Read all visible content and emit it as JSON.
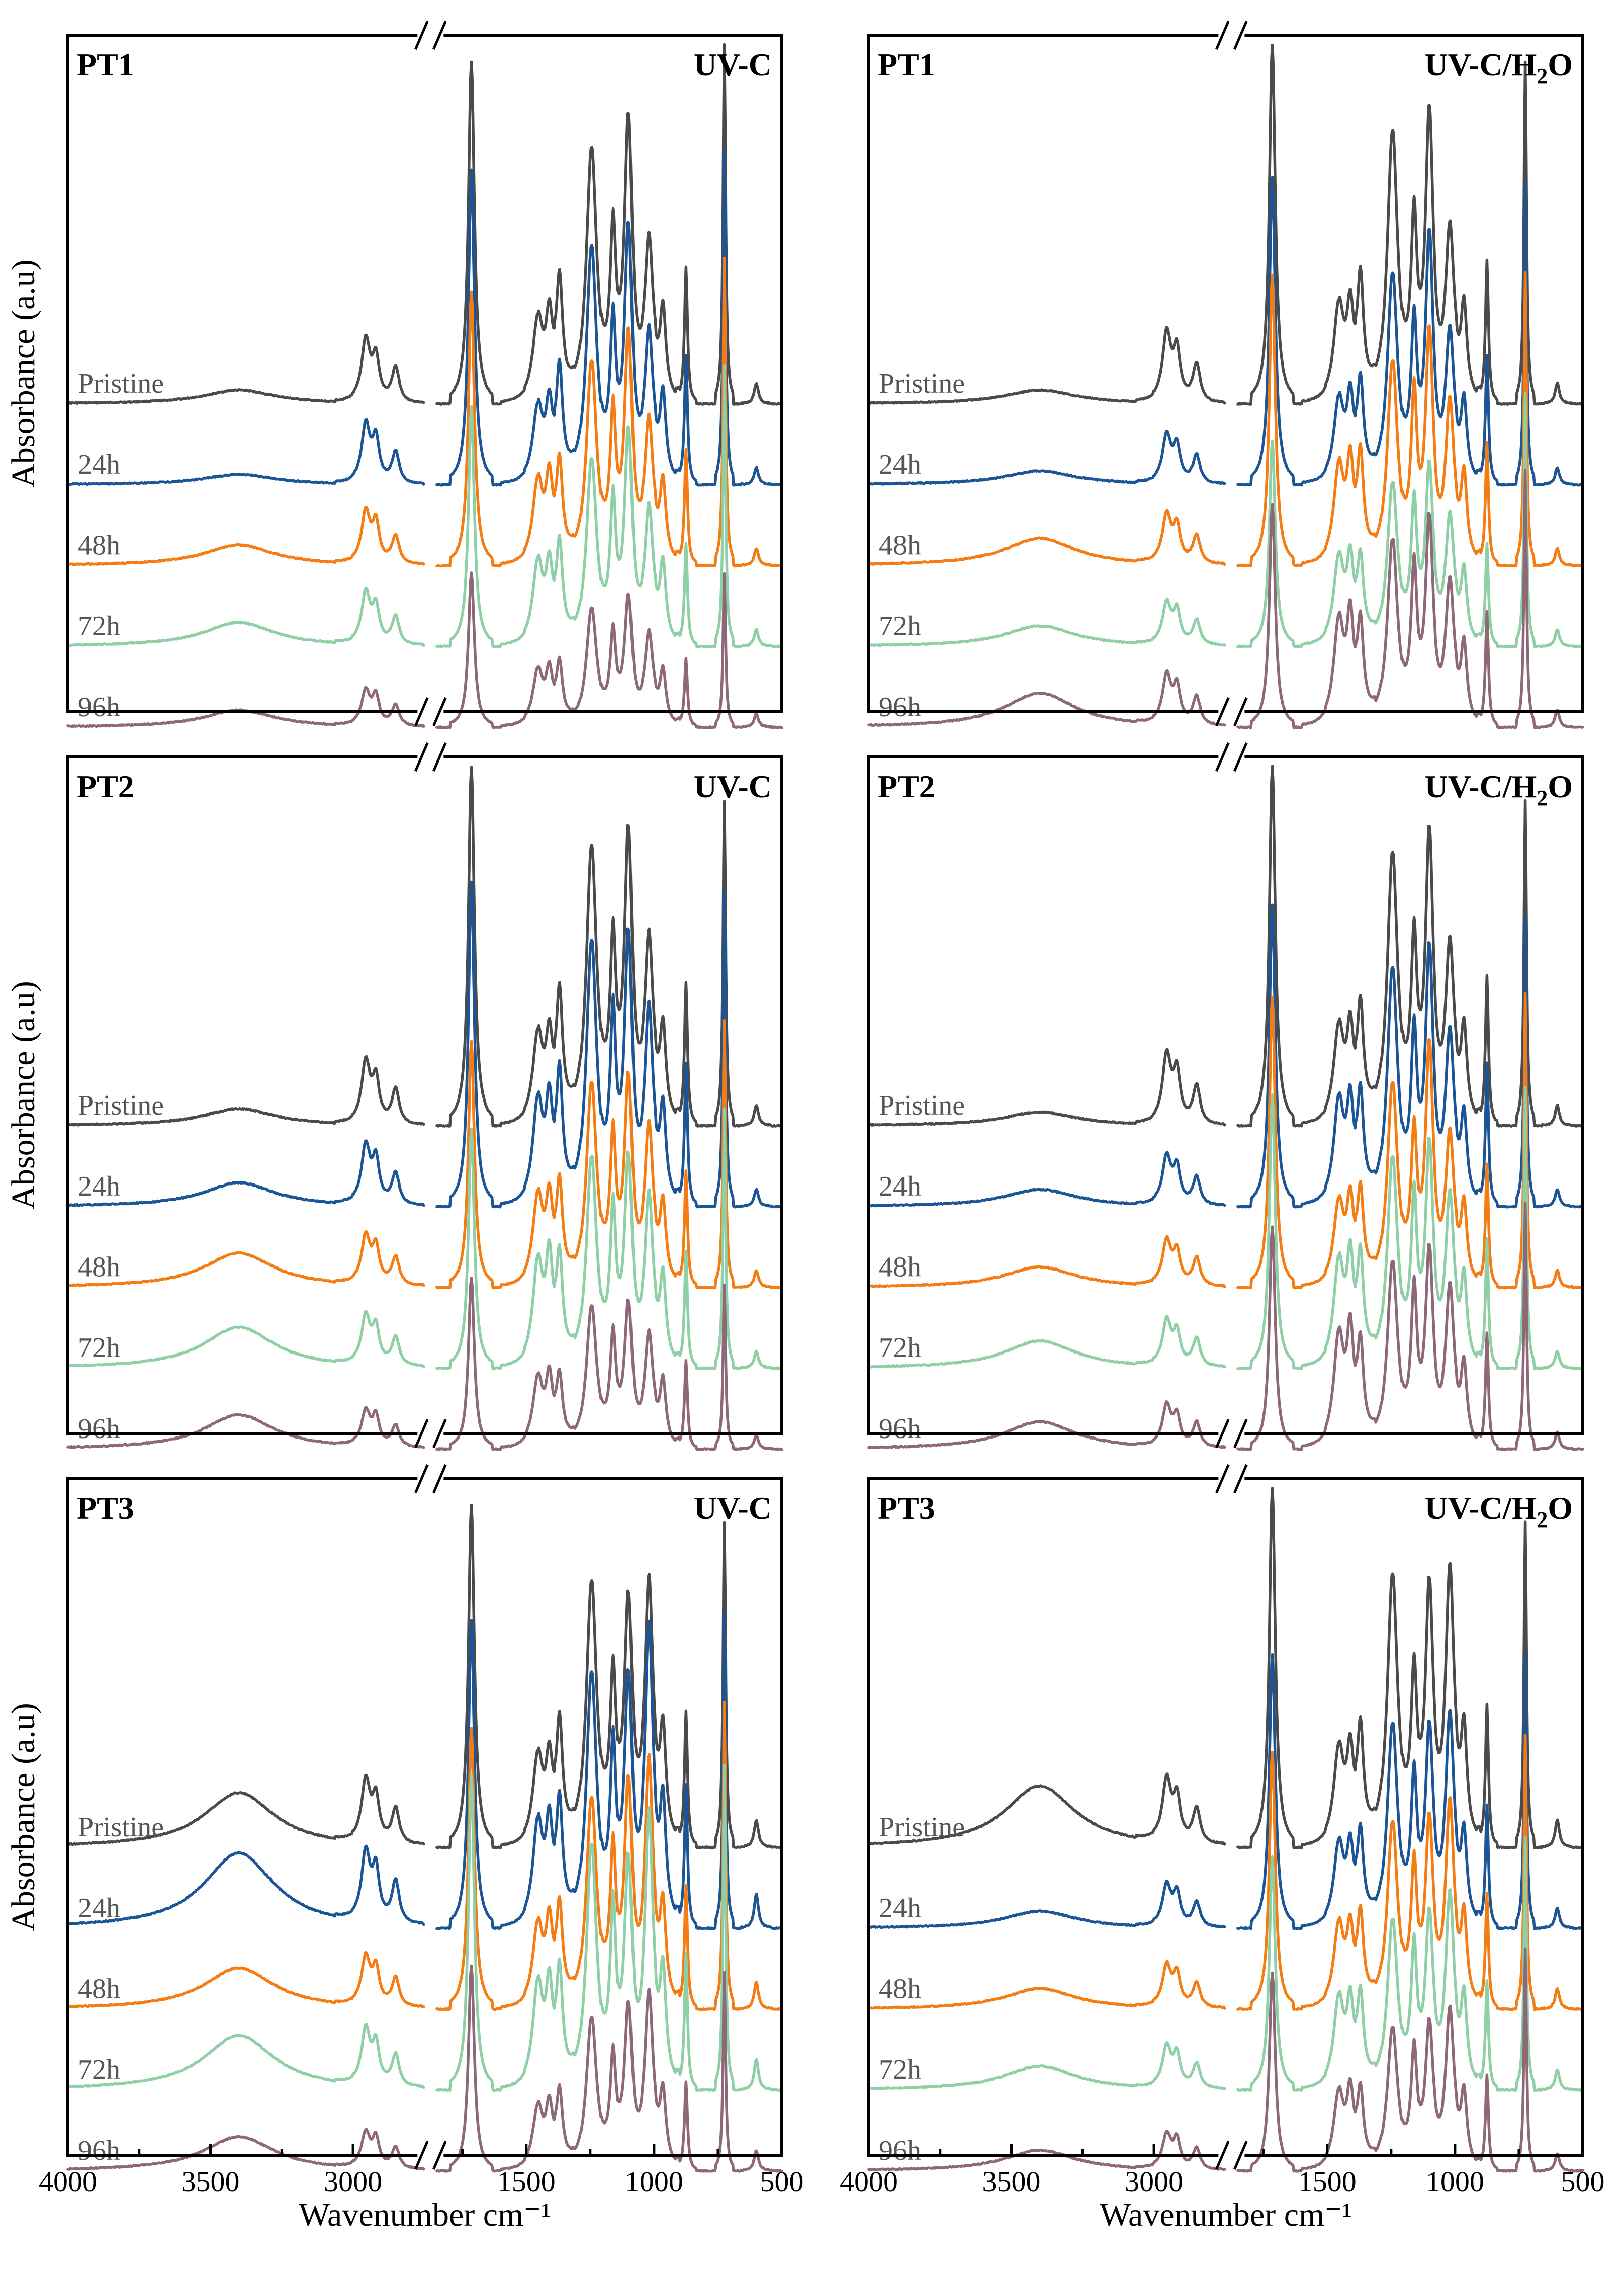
{
  "chart_data": {
    "type": "line",
    "figure_title": "",
    "xlabel": "Wavenumber cm⁻¹",
    "ylabel": "Absorbance (a.u)",
    "x_range": [
      4000,
      500
    ],
    "x_break": [
      2750,
      1850
    ],
    "x_ticks": [
      4000,
      3500,
      3000,
      1500,
      1000,
      500
    ],
    "x_tick_labels": [
      "4000",
      "3500",
      "3000",
      "1500",
      "1000",
      "500"
    ],
    "series_names": [
      "Pristine",
      "24h",
      "48h",
      "72h",
      "96h"
    ],
    "series_colors": [
      "#4a4a4a",
      "#1c5596",
      "#f57c12",
      "#8fcfa6",
      "#8e6878"
    ],
    "peak_positions_cm1": [
      3400,
      2955,
      2920,
      2850,
      1715,
      1455,
      1410,
      1370,
      1245,
      1160,
      1100,
      1020,
      965,
      875,
      725,
      600
    ],
    "panels": [
      {
        "id": "PT1",
        "condition_label": "UV-C",
        "condition_text": "UV-C",
        "condition_sub": "",
        "condition_tail": "",
        "panel_col": "left",
        "series": [
          {
            "name": "Pristine",
            "peaks": [
              0.04,
              0.18,
              0.12,
              0.1,
              1.0,
              0.24,
              0.22,
              0.32,
              0.75,
              0.45,
              0.8,
              0.45,
              0.25,
              0.4,
              1.05,
              0.06
            ]
          },
          {
            "name": "24h",
            "peaks": [
              0.03,
              0.17,
              0.12,
              0.09,
              0.92,
              0.22,
              0.2,
              0.3,
              0.7,
              0.42,
              0.72,
              0.42,
              0.24,
              0.38,
              0.98,
              0.05
            ]
          },
          {
            "name": "48h",
            "peaks": [
              0.06,
              0.15,
              0.11,
              0.08,
              0.8,
              0.24,
              0.22,
              0.26,
              0.6,
              0.4,
              0.65,
              0.4,
              0.22,
              0.34,
              0.9,
              0.05
            ]
          },
          {
            "name": "72h",
            "peaks": [
              0.07,
              0.15,
              0.1,
              0.08,
              0.7,
              0.24,
              0.2,
              0.26,
              0.55,
              0.38,
              0.6,
              0.38,
              0.22,
              0.3,
              0.82,
              0.05
            ]
          },
          {
            "name": "96h",
            "peaks": [
              0.05,
              0.1,
              0.08,
              0.06,
              0.45,
              0.16,
              0.14,
              0.16,
              0.35,
              0.25,
              0.36,
              0.26,
              0.15,
              0.2,
              0.45,
              0.04
            ]
          }
        ]
      },
      {
        "id": "PT1",
        "condition_label": "UV-C/H2O",
        "condition_text": "UV-C/H",
        "condition_sub": "2",
        "condition_tail": "O",
        "panel_col": "right",
        "series": [
          {
            "name": "Pristine",
            "peaks": [
              0.04,
              0.2,
              0.14,
              0.11,
              1.05,
              0.28,
              0.24,
              0.32,
              0.8,
              0.48,
              0.82,
              0.48,
              0.26,
              0.42,
              1.0,
              0.06
            ]
          },
          {
            "name": "24h",
            "peaks": [
              0.04,
              0.14,
              0.1,
              0.08,
              0.9,
              0.24,
              0.22,
              0.26,
              0.62,
              0.42,
              0.7,
              0.42,
              0.22,
              0.38,
              0.88,
              0.05
            ]
          },
          {
            "name": "48h",
            "peaks": [
              0.08,
              0.14,
              0.1,
              0.08,
              0.85,
              0.28,
              0.26,
              0.28,
              0.6,
              0.45,
              0.65,
              0.45,
              0.24,
              0.36,
              0.86,
              0.05
            ]
          },
          {
            "name": "72h",
            "peaks": [
              0.06,
              0.12,
              0.09,
              0.07,
              0.6,
              0.25,
              0.22,
              0.22,
              0.48,
              0.38,
              0.5,
              0.36,
              0.2,
              0.3,
              0.74,
              0.05
            ]
          },
          {
            "name": "96h",
            "peaks": [
              0.1,
              0.14,
              0.1,
              0.08,
              0.65,
              0.3,
              0.28,
              0.26,
              0.55,
              0.42,
              0.58,
              0.4,
              0.22,
              0.34,
              0.75,
              0.05
            ]
          }
        ]
      },
      {
        "id": "PT2",
        "condition_label": "UV-C",
        "condition_text": "UV-C",
        "condition_sub": "",
        "condition_tail": "",
        "panel_col": "left",
        "series": [
          {
            "name": "Pristine",
            "peaks": [
              0.05,
              0.18,
              0.12,
              0.1,
              1.05,
              0.26,
              0.22,
              0.34,
              0.82,
              0.48,
              0.82,
              0.52,
              0.26,
              0.42,
              0.95,
              0.06
            ]
          },
          {
            "name": "24h",
            "peaks": [
              0.07,
              0.17,
              0.12,
              0.09,
              0.95,
              0.3,
              0.26,
              0.34,
              0.78,
              0.5,
              0.75,
              0.55,
              0.26,
              0.42,
              0.92,
              0.05
            ]
          },
          {
            "name": "48h",
            "peaks": [
              0.1,
              0.14,
              0.1,
              0.08,
              0.72,
              0.26,
              0.22,
              0.26,
              0.6,
              0.4,
              0.58,
              0.45,
              0.22,
              0.34,
              0.78,
              0.05
            ]
          },
          {
            "name": "72h",
            "peaks": [
              0.12,
              0.14,
              0.1,
              0.08,
              0.7,
              0.3,
              0.28,
              0.28,
              0.62,
              0.42,
              0.58,
              0.48,
              0.24,
              0.34,
              0.76,
              0.05
            ]
          },
          {
            "name": "96h",
            "peaks": [
              0.1,
              0.1,
              0.08,
              0.06,
              0.5,
              0.2,
              0.18,
              0.18,
              0.42,
              0.3,
              0.4,
              0.32,
              0.18,
              0.26,
              0.48,
              0.04
            ]
          }
        ]
      },
      {
        "id": "PT2",
        "condition_label": "UV-C/H2O",
        "condition_text": "UV-C/H",
        "condition_sub": "2",
        "condition_tail": "O",
        "panel_col": "right",
        "series": [
          {
            "name": "Pristine",
            "peaks": [
              0.04,
              0.2,
              0.14,
              0.11,
              1.05,
              0.28,
              0.24,
              0.3,
              0.8,
              0.48,
              0.82,
              0.5,
              0.26,
              0.44,
              0.95,
              0.06
            ]
          },
          {
            "name": "24h",
            "peaks": [
              0.05,
              0.14,
              0.1,
              0.08,
              0.88,
              0.3,
              0.26,
              0.28,
              0.7,
              0.45,
              0.72,
              0.48,
              0.24,
              0.42,
              0.85,
              0.05
            ]
          },
          {
            "name": "48h",
            "peaks": [
              0.06,
              0.13,
              0.09,
              0.08,
              0.85,
              0.24,
              0.22,
              0.24,
              0.6,
              0.4,
              0.68,
              0.42,
              0.22,
              0.36,
              0.86,
              0.05
            ]
          },
          {
            "name": "72h",
            "peaks": [
              0.08,
              0.13,
              0.09,
              0.08,
              0.8,
              0.3,
              0.28,
              0.28,
              0.62,
              0.45,
              0.62,
              0.48,
              0.24,
              0.38,
              0.82,
              0.05
            ]
          },
          {
            "name": "96h",
            "peaks": [
              0.08,
              0.12,
              0.08,
              0.07,
              0.65,
              0.32,
              0.3,
              0.26,
              0.55,
              0.42,
              0.55,
              0.45,
              0.22,
              0.34,
              0.72,
              0.05
            ]
          }
        ]
      },
      {
        "id": "PT3",
        "condition_label": "UV-C",
        "condition_text": "UV-C",
        "condition_sub": "",
        "condition_tail": "",
        "panel_col": "left",
        "series": [
          {
            "name": "Pristine",
            "peaks": [
              0.16,
              0.18,
              0.12,
              0.1,
              1.0,
              0.26,
              0.22,
              0.32,
              0.78,
              0.45,
              0.68,
              0.75,
              0.3,
              0.4,
              0.95,
              0.08
            ]
          },
          {
            "name": "24h",
            "peaks": [
              0.22,
              0.2,
              0.14,
              0.12,
              0.9,
              0.3,
              0.26,
              0.32,
              0.75,
              0.48,
              0.68,
              0.85,
              0.32,
              0.42,
              0.92,
              0.1
            ]
          },
          {
            "name": "48h",
            "peaks": [
              0.12,
              0.14,
              0.1,
              0.08,
              0.82,
              0.24,
              0.22,
              0.26,
              0.62,
              0.42,
              0.62,
              0.7,
              0.26,
              0.36,
              0.9,
              0.08
            ]
          },
          {
            "name": "72h",
            "peaks": [
              0.16,
              0.16,
              0.11,
              0.09,
              0.92,
              0.3,
              0.26,
              0.3,
              0.72,
              0.48,
              0.62,
              0.78,
              0.3,
              0.4,
              0.95,
              0.09
            ]
          },
          {
            "name": "96h",
            "peaks": [
              0.1,
              0.1,
              0.08,
              0.06,
              0.6,
              0.18,
              0.16,
              0.2,
              0.45,
              0.3,
              0.45,
              0.5,
              0.2,
              0.26,
              0.58,
              0.06
            ]
          }
        ]
      },
      {
        "id": "PT3",
        "condition_label": "UV-C/H2O",
        "condition_text": "UV-C/H",
        "condition_sub": "2",
        "condition_tail": "O",
        "panel_col": "right",
        "series": [
          {
            "name": "Pristine",
            "peaks": [
              0.18,
              0.18,
              0.12,
              0.1,
              1.05,
              0.28,
              0.24,
              0.3,
              0.8,
              0.45,
              0.72,
              0.78,
              0.3,
              0.42,
              0.95,
              0.08
            ]
          },
          {
            "name": "24h",
            "peaks": [
              0.05,
              0.12,
              0.09,
              0.07,
              0.8,
              0.24,
              0.2,
              0.24,
              0.6,
              0.4,
              0.55,
              0.6,
              0.24,
              0.36,
              0.8,
              0.06
            ]
          },
          {
            "name": "48h",
            "peaks": [
              0.06,
              0.12,
              0.09,
              0.07,
              0.75,
              0.24,
              0.2,
              0.24,
              0.55,
              0.38,
              0.52,
              0.58,
              0.24,
              0.34,
              0.8,
              0.06
            ]
          },
          {
            "name": "72h",
            "peaks": [
              0.07,
              0.12,
              0.09,
              0.07,
              0.68,
              0.26,
              0.22,
              0.24,
              0.5,
              0.38,
              0.48,
              0.55,
              0.24,
              0.32,
              0.74,
              0.06
            ]
          },
          {
            "name": "96h",
            "peaks": [
              0.06,
              0.1,
              0.08,
              0.06,
              0.58,
              0.22,
              0.2,
              0.2,
              0.42,
              0.32,
              0.4,
              0.45,
              0.2,
              0.28,
              0.65,
              0.05
            ]
          }
        ]
      }
    ]
  }
}
